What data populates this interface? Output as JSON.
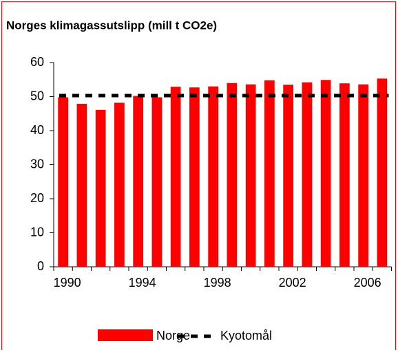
{
  "chart_data": {
    "type": "bar",
    "title": "Norges klimagassutslipp (mill t CO2e)",
    "categories": [
      "1990",
      null,
      null,
      null,
      "1994",
      null,
      null,
      null,
      "1998",
      null,
      null,
      null,
      "2002",
      null,
      null,
      null,
      "2006",
      null
    ],
    "series": [
      {
        "name": "Norge",
        "color": "#ff0000",
        "values": [
          49.8,
          47.9,
          46.1,
          48.2,
          50.2,
          49.8,
          52.9,
          52.7,
          53.0,
          54.0,
          53.6,
          54.8,
          53.5,
          54.2,
          54.9,
          53.9,
          53.6,
          55.3
        ]
      }
    ],
    "reference_line": {
      "name": "Kyotomål",
      "value": 50.3,
      "color": "#000000"
    },
    "ylim": [
      0,
      60
    ],
    "yticks": [
      0,
      10,
      20,
      30,
      40,
      50,
      60
    ],
    "grid": false
  }
}
